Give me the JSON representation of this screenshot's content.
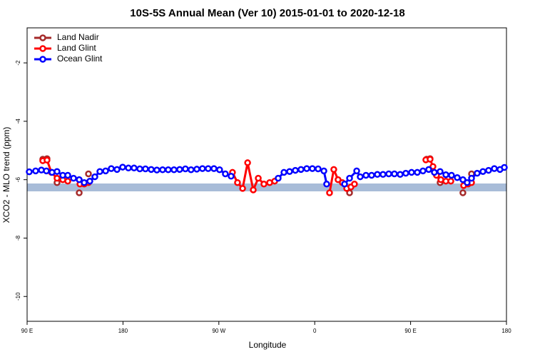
{
  "chart_data": {
    "type": "line",
    "title": "10S-5S Annual Mean (Ver 10)   2015-01-01 to 2020-12-18",
    "x_label": "Longitude",
    "y_label": "XCO2 - MLO trend (ppm)",
    "xlim": [
      90,
      540
    ],
    "ylim": [
      -10.85,
      -0.8
    ],
    "xticks": [
      {
        "value": 90,
        "label": "90 E"
      },
      180,
      {
        "value": 270,
        "label": "90 W"
      },
      {
        "value": 360,
        "label": "0"
      },
      {
        "value": 450,
        "label": "90 E"
      },
      {
        "value": 540,
        "label": "180"
      }
    ],
    "yticks": [
      -10,
      -8,
      -6,
      -4,
      -2
    ],
    "legend": "upper left",
    "series": [
      {
        "name": "Land Nadir",
        "color": "#a52a2a",
        "x": [
          104.7,
          108.7,
          null,
          118.1,
          null,
          138.9,
          null,
          147.6,
          null,
          392.7,
          null,
          465,
          468.3,
          null,
          477.7,
          null,
          499.1,
          null,
          507.2
        ],
        "values": [
          -5.3,
          -5.28,
          null,
          -6.1,
          null,
          -6.45,
          null,
          -5.8,
          null,
          -6.45,
          null,
          -5.3,
          -5.28,
          null,
          -6.1,
          null,
          -6.45,
          null,
          -5.8
        ]
      },
      {
        "name": "Land Glint",
        "color": "#ff0000",
        "x": [
          104.7,
          108.7,
          112.8,
          118.1,
          123.5,
          128.2,
          null,
          139.6,
          143.6,
          147.6,
          null,
          282.8,
          287.5,
          292.3,
          297,
          302.3,
          307,
          312.3,
          317.7,
          322.4,
          null,
          373.9,
          377.9,
          381.9,
          385.9,
          390,
          394,
          397.3,
          null,
          464.3,
          468.3,
          471,
          474.3,
          478.4,
          483.1,
          487.8,
          null,
          499.8,
          503.9,
          507.2
        ],
        "values": [
          -5.35,
          -5.33,
          -5.75,
          -5.95,
          -6.0,
          -6.05,
          null,
          -6.15,
          -6.15,
          -6.1,
          null,
          -5.75,
          -6.1,
          -6.3,
          -5.42,
          -6.35,
          -5.95,
          -6.15,
          -6.1,
          -6.05,
          null,
          -6.45,
          -5.65,
          -6.0,
          -6.1,
          -6.3,
          -6.25,
          -6.15,
          null,
          -5.32,
          -5.3,
          -5.55,
          -5.85,
          -6.0,
          -6.05,
          -6.05,
          null,
          -6.2,
          -6.15,
          -6.1
        ]
      },
      {
        "name": "Ocean Glint",
        "color": "#0000ff",
        "x": [
          92.0,
          98.0,
          103.4,
          108.1,
          113.4,
          118.1,
          123.5,
          128.2,
          133.6,
          138.9,
          143.6,
          148.9,
          153.6,
          158.3,
          163.7,
          169.0,
          174.4,
          179.7,
          185.1,
          190.4,
          195.8,
          201.1,
          206.5,
          211.8,
          217.2,
          222.5,
          227.9,
          233.2,
          238.6,
          243.9,
          249.3,
          254.6,
          260.0,
          265.4,
          270.7,
          276.1,
          281.5,
          null,
          325.7,
          331.1,
          336.4,
          341.8,
          347.1,
          352.5,
          357.8,
          363.2,
          368.6,
          371.2,
          null,
          388.0,
          392.7,
          399.4,
          402.7,
          408.1,
          413.4,
          418.8,
          424.1,
          429.5,
          434.8,
          440.2,
          445.5,
          450.9,
          456.3,
          461.6,
          467.0,
          472.3,
          477.7,
          483.1,
          488.4,
          493.8,
          499.1,
          503.1,
          507.2,
          512.5,
          517.9,
          523.2,
          528.6,
          533.9,
          538.0
        ],
        "values": [
          -5.73,
          -5.7,
          -5.67,
          -5.7,
          -5.75,
          -5.72,
          -5.85,
          -5.85,
          -5.95,
          -6.0,
          -6.1,
          -6.05,
          -5.9,
          -5.72,
          -5.7,
          -5.62,
          -5.65,
          -5.57,
          -5.6,
          -5.6,
          -5.63,
          -5.63,
          -5.65,
          -5.67,
          -5.66,
          -5.66,
          -5.66,
          -5.65,
          -5.63,
          -5.66,
          -5.64,
          -5.62,
          -5.62,
          -5.62,
          -5.66,
          -5.8,
          -5.88,
          null,
          -5.95,
          -5.75,
          -5.72,
          -5.68,
          -5.65,
          -5.62,
          -5.62,
          -5.63,
          -5.7,
          -6.15,
          null,
          -6.15,
          -5.95,
          -5.7,
          -5.9,
          -5.85,
          -5.85,
          -5.82,
          -5.82,
          -5.8,
          -5.8,
          -5.82,
          -5.78,
          -5.75,
          -5.75,
          -5.7,
          -5.65,
          -5.75,
          -5.72,
          -5.83,
          -5.85,
          -5.93,
          -6.0,
          -6.1,
          -5.95,
          -5.78,
          -5.72,
          -5.68,
          -5.62,
          -5.65,
          -5.58
        ]
      }
    ]
  }
}
